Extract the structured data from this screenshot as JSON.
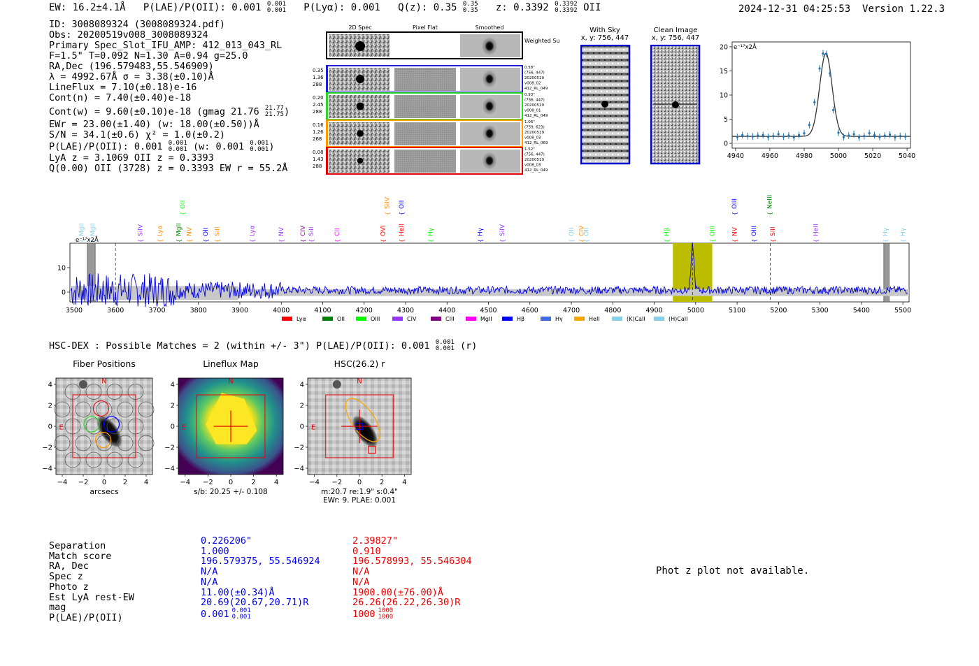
{
  "header": {
    "ew": "EW: 16.2±4.1Å",
    "plae_label": "P(LAE)/P(OII): 0.001",
    "plae_hi": "0.001",
    "plae_lo": "0.001",
    "plya": "P(Lyα): 0.001",
    "qz_label": "Q(z): 0.35",
    "qz_hi": "0.35",
    "qz_lo": "0.35",
    "z_label": "z: 0.3392",
    "z_hi": "0.3392",
    "z_lo": "0.3392",
    "z_line": "OII",
    "timestamp": "2024-12-31 04:25:53",
    "version": "Version 1.22.3"
  },
  "info": {
    "id": "ID: 3008089324 (3008089324.pdf)",
    "obs": "Obs: 20200519v008_3008089324",
    "primary": "Primary Spec_Slot_IFU_AMP: 412_013_043_RL",
    "fiber": "F=1.5\"  T=0.092  N=1.30  A=0.94  g=25.0",
    "radec": "RA,Dec (196.579483,55.546909)",
    "lambda": "λ = 4992.67Å  σ = 3.38(±0.10)Å",
    "lineflux": "LineFlux = 7.10(±0.18)e-16",
    "contn": "Cont(n) = 7.40(±0.40)e-18",
    "contw": "Cont(w) = 9.60(±0.10)e-18 (gmag 21.76",
    "contw_hi": "21.77",
    "contw_lo": "21.75",
    "contw_end": ")",
    "ewr": "EWr = 23.00(±1.40) (w: 18.00(±0.50))Å",
    "sn": "S/N = 34.1(±0.6)  χ² = 1.0(±0.2)",
    "plae": "P(LAE)/P(OII): 0.001",
    "plae_hi": "0.001",
    "plae_lo": "0.001",
    "plae_w": "(w: 0.001",
    "plae_w_hi": "0.001",
    "plae_w_lo": "0.001",
    "plae_w_end": ")",
    "lya": "LyA z = 3.1069  OII z = 0.3393",
    "q": "Q(0.00) OII (3728) z = 0.3393  EW r = 55.2Å"
  },
  "cutouts": {
    "col_labels": [
      "2D Spec",
      "Pixel Flat",
      "Smoothed"
    ],
    "weighted": "Weighted\nSum",
    "rows": [
      {
        "left": [
          "0.35",
          "1.36",
          "288"
        ],
        "right": [
          "0.58\"",
          "(756, 447)",
          "20200519",
          "v008_02",
          "412_RL_049"
        ],
        "color": "#1f1fd0"
      },
      {
        "left": [
          "0.20",
          "2.45",
          "288"
        ],
        "right": [
          "0.93\"",
          "(756, 447)",
          "20200519",
          "v008_01",
          "412_RL_049"
        ],
        "color": "#2bd62b"
      },
      {
        "left": [
          "0.16",
          "1.26",
          "268"
        ],
        "right": [
          "1.06\"",
          "(759, 623)",
          "20200519",
          "v008_03",
          "412_RL_069"
        ],
        "color": "#ff9900"
      },
      {
        "left": [
          "0.08",
          "1.43",
          "288"
        ],
        "right": [
          "1.52\"",
          "(756, 447)",
          "20200519",
          "v008_03",
          "412_RL_049"
        ],
        "color": "#e00000"
      }
    ],
    "with_sky": "With Sky",
    "with_sky_xy": "x, y: 756, 447",
    "clean": "Clean Image",
    "clean_xy": "x, y: 756, 447"
  },
  "zoom_chart": {
    "type": "line",
    "ylabel": "e⁻¹⁷x2Å",
    "x": [
      4941,
      4944,
      4947,
      4950,
      4953,
      4956,
      4959,
      4962,
      4965,
      4968,
      4971,
      4974,
      4977,
      4980,
      4983,
      4986,
      4989,
      4991,
      4993,
      4995,
      4997,
      5000,
      5003,
      5006,
      5009,
      5012,
      5015,
      5018,
      5021,
      5024,
      5027,
      5030,
      5033,
      5036,
      5039
    ],
    "values": [
      1.3,
      1.7,
      1.5,
      1.4,
      1.6,
      1.7,
      1.3,
      1.5,
      1.9,
      1.4,
      1.6,
      1.2,
      1.7,
      2.1,
      3.8,
      8.5,
      15.5,
      18.6,
      18.5,
      14.5,
      6.9,
      2.2,
      1.3,
      1.6,
      1.9,
      1.2,
      1.5,
      2.1,
      1.7,
      1.3,
      1.6,
      1.8,
      1.2,
      1.5,
      1.4
    ],
    "xlim": [
      4938,
      5042
    ],
    "ylim": [
      -1,
      21
    ],
    "xticks": [
      "4940",
      "4960",
      "4980",
      "5000",
      "5020",
      "5040"
    ],
    "yticks": [
      "0",
      "5",
      "10",
      "15",
      "20"
    ]
  },
  "full_spectrum": {
    "type": "line",
    "ylabel": "e⁻¹⁷x2Å",
    "xlim": [
      3490,
      5515
    ],
    "ylim": [
      -4,
      20
    ],
    "xticks": [
      "3500",
      "3600",
      "3700",
      "3800",
      "3900",
      "4000",
      "4100",
      "4200",
      "4300",
      "4400",
      "4500",
      "4600",
      "4700",
      "4800",
      "4900",
      "5000",
      "5100",
      "5200",
      "5300",
      "5400",
      "5500"
    ],
    "yticks": [
      "0",
      "10"
    ],
    "legend": [
      {
        "label": "Lyα",
        "color": "#ff0000"
      },
      {
        "label": "OII",
        "color": "#008000"
      },
      {
        "label": "OIII",
        "color": "#00ff00"
      },
      {
        "label": "CIV",
        "color": "#9933ff"
      },
      {
        "label": "CIII",
        "color": "#800080"
      },
      {
        "label": "MgII",
        "color": "#ff00ff"
      },
      {
        "label": "Hβ",
        "color": "#0000ff"
      },
      {
        "label": "Hγ",
        "color": "#4169e1"
      },
      {
        "label": "HeII",
        "color": "#ffa500"
      },
      {
        "label": "(K)CaII",
        "color": "#87ceeb"
      },
      {
        "label": "(H)CaII",
        "color": "#87ceeb"
      }
    ],
    "lower_labels": [
      {
        "t": "MgII",
        "w": 3518,
        "c": "#87ceeb"
      },
      {
        "t": "MgII",
        "w": 3545,
        "c": "#87ceeb"
      },
      {
        "t": "SiIV",
        "w": 3660,
        "c": "#9933ff"
      },
      {
        "t": "Lyα",
        "w": 3707,
        "c": "#ff8c00"
      },
      {
        "t": "MgII",
        "w": 3752,
        "c": "#008000"
      },
      {
        "t": "NV",
        "w": 3778,
        "c": "#ff8c00"
      },
      {
        "t": "OII",
        "w": 3817,
        "c": "#0000ff"
      },
      {
        "t": "SiII",
        "w": 3845,
        "c": "#ff8c00"
      },
      {
        "t": "Lyα",
        "w": 3930,
        "c": "#9933ff"
      },
      {
        "t": "NV",
        "w": 4000,
        "c": "#9933ff"
      },
      {
        "t": "CIV",
        "w": 4052,
        "c": "#800080"
      },
      {
        "t": "SiII",
        "w": 4072,
        "c": "#9933ff"
      },
      {
        "t": "CII",
        "w": 4135,
        "c": "#ff00ff"
      },
      {
        "t": "OVI",
        "w": 4245,
        "c": "#ff0000"
      },
      {
        "t": "HeII",
        "w": 4290,
        "c": "#ff0000"
      },
      {
        "t": "Hγ",
        "w": 4360,
        "c": "#00ff00"
      },
      {
        "t": "Hγ",
        "w": 4480,
        "c": "#0000ff"
      },
      {
        "t": "SiIV",
        "w": 4533,
        "c": "#9933ff"
      },
      {
        "t": "OII",
        "w": 4700,
        "c": "#87ceeb"
      },
      {
        "t": "CIV",
        "w": 4724,
        "c": "#ff8c00"
      },
      {
        "t": "OII",
        "w": 4736,
        "c": "#87ceeb"
      },
      {
        "t": "Hβ",
        "w": 4930,
        "c": "#00ff00"
      },
      {
        "t": "OIII",
        "w": 5040,
        "c": "#00ff00"
      },
      {
        "t": "NV",
        "w": 5094,
        "c": "#ff0000"
      },
      {
        "t": "OIII",
        "w": 5140,
        "c": "#0000ff"
      },
      {
        "t": "SiII",
        "w": 5186,
        "c": "#ff0000"
      },
      {
        "t": "HeII",
        "w": 5290,
        "c": "#9933ff"
      },
      {
        "t": "Hγ",
        "w": 5458,
        "c": "#87ceeb"
      },
      {
        "t": "Hγ",
        "w": 5500,
        "c": "#87ceeb"
      }
    ],
    "upper_labels": [
      {
        "t": "OII",
        "w": 3762,
        "c": "#00ff00"
      },
      {
        "t": "SiIV",
        "w": 4255,
        "c": "#ff8c00"
      },
      {
        "t": "OII",
        "w": 4290,
        "c": "#0000ff"
      },
      {
        "t": "OIII",
        "w": 5093,
        "c": "#0000ff"
      },
      {
        "t": "NeIII",
        "w": 5178,
        "c": "#008000"
      }
    ]
  },
  "hsc": {
    "title": "HSC-DEX : Possible Matches = 2 (within +/- 3\")  P(LAE)/P(OII): 0.001",
    "hi": "0.001",
    "lo": "0.001",
    "band": "(r)"
  },
  "panels": [
    {
      "title": "Fiber Positions",
      "xlabel": "arcsecs",
      "caption": []
    },
    {
      "title": "Lineflux Map",
      "xlabel": "",
      "caption": [
        "s/b: 20.25 +/- 0.108"
      ]
    },
    {
      "title": "HSC(26.2) r",
      "xlabel": "",
      "caption": [
        "m:20.7  re:1.9\"  s:0.4\"",
        "EWr: 9. PLAE: 0.001"
      ]
    }
  ],
  "panel_ticks": [
    "4",
    "2",
    "0",
    "−2",
    "−4"
  ],
  "panel_xticks": [
    "−4",
    "−2",
    "0",
    "2",
    "4"
  ],
  "compass": {
    "n": "N",
    "e": "E"
  },
  "matches": {
    "labels": [
      "Separation",
      "Match score",
      "RA, Dec",
      "Spec z",
      "Photo z",
      "Est LyA rest-EW",
      "mag",
      "P(LAE)/P(OII)"
    ],
    "col1": [
      "0.226206\"",
      "1.000",
      "196.579375, 55.546924",
      "N/A",
      "N/A",
      "11.00(±0.34)Å",
      "20.69(20.67,20.71)R",
      "0.001"
    ],
    "col1_sup": [
      "0.001",
      "0.001"
    ],
    "col2": [
      "2.39827\"",
      "0.910",
      "196.578993, 55.546304",
      "N/A",
      "N/A",
      "1900.00(±76.00)Å",
      "26.26(26.22,26.30)R",
      "1000"
    ],
    "col2_sup": [
      "1000",
      "1000"
    ]
  },
  "photz": "Phot z plot not available."
}
